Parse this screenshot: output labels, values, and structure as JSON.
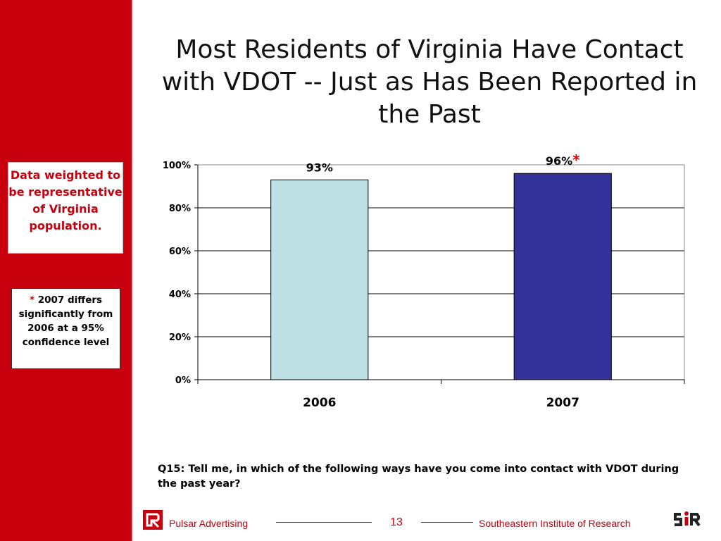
{
  "slide": {
    "title_line1": "Most Residents of Virginia Have Contact",
    "title_line2": "with VDOT -- Just as Has Been Reported in",
    "title_line3": "the Past",
    "note_weighted": "Data weighted to be representative of Virginia population.",
    "note_sig_star": "*",
    "note_sig_text": " 2007 differs significantly from 2006 at a 95% confidence level",
    "question": "Q15:  Tell me, in which of the following ways have you come into contact with VDOT during the past year?"
  },
  "footer": {
    "left_text": "Pulsar Advertising",
    "page_number": "13",
    "right_text": "Southeastern Institute of Research",
    "left_logo_icon": "pulsar-logo-icon",
    "right_logo_icon": "sir-logo-icon"
  },
  "colors": {
    "sidebar": "#c8000e",
    "bar_2006": "#bde0e4",
    "bar_2007": "#333399",
    "asterisk": "#d40000"
  },
  "chart_data": {
    "type": "bar",
    "categories": [
      "2006",
      "2007"
    ],
    "values": [
      93,
      96
    ],
    "data_labels": [
      "93%",
      "96%"
    ],
    "significance_marker": [
      "",
      "*"
    ],
    "yticks": [
      "0%",
      "20%",
      "40%",
      "60%",
      "80%",
      "100%"
    ],
    "ylim": [
      0,
      100
    ],
    "grid": true
  }
}
